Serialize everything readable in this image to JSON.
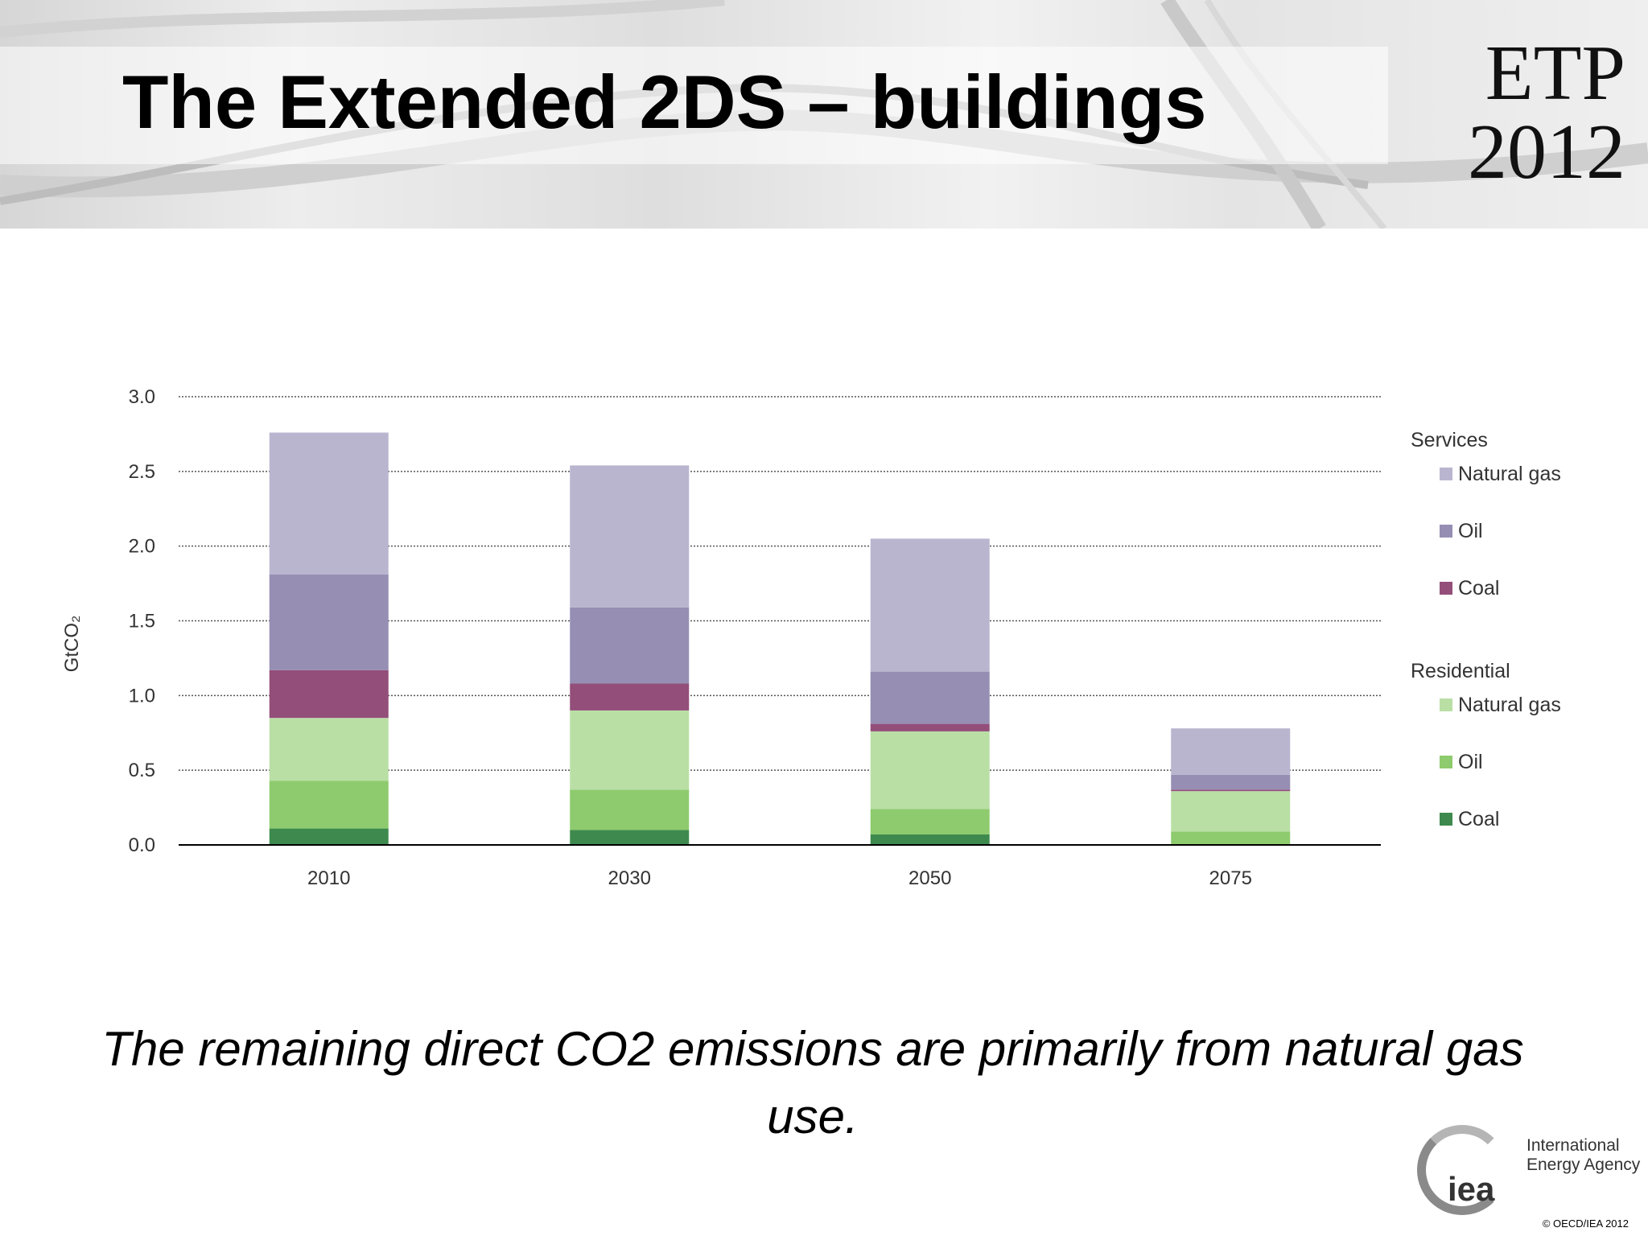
{
  "slide": {
    "title": "The Extended 2DS – buildings",
    "logo": {
      "line1": "ETP",
      "line2": "2012"
    },
    "caption": "The remaining direct CO2 emissions are primarily from natural gas use.",
    "footer": {
      "org_mark": "iea",
      "org_line1": "International",
      "org_line2": "Energy Agency",
      "copyright": "© OECD/IEA 2012"
    }
  },
  "chart_data": {
    "type": "bar",
    "stacked": true,
    "categories": [
      "2010",
      "2030",
      "2050",
      "2075"
    ],
    "ylabel": "GtCO₂",
    "ylim": [
      0,
      3.0
    ],
    "yticks": [
      "0.0",
      "0.5",
      "1.0",
      "1.5",
      "2.0",
      "2.5",
      "3.0"
    ],
    "grid": true,
    "legend_position": "right",
    "legend_groups": [
      "Services",
      "Residential"
    ],
    "series": [
      {
        "group": "Residential",
        "name": "Coal",
        "color": "#3e8a4e",
        "values": [
          0.11,
          0.1,
          0.07,
          0.0
        ]
      },
      {
        "group": "Residential",
        "name": "Oil",
        "color": "#8ecb6e",
        "values": [
          0.32,
          0.27,
          0.17,
          0.09
        ]
      },
      {
        "group": "Residential",
        "name": "Natural gas",
        "color": "#b9dfa5",
        "values": [
          0.42,
          0.53,
          0.52,
          0.27
        ]
      },
      {
        "group": "Services",
        "name": "Coal",
        "color": "#934e7a",
        "values": [
          0.32,
          0.18,
          0.05,
          0.01
        ]
      },
      {
        "group": "Services",
        "name": "Oil",
        "color": "#968eb3",
        "values": [
          0.64,
          0.51,
          0.35,
          0.1
        ]
      },
      {
        "group": "Services",
        "name": "Natural gas",
        "color": "#bab5cf",
        "values": [
          0.95,
          0.95,
          0.89,
          0.31
        ]
      }
    ]
  }
}
